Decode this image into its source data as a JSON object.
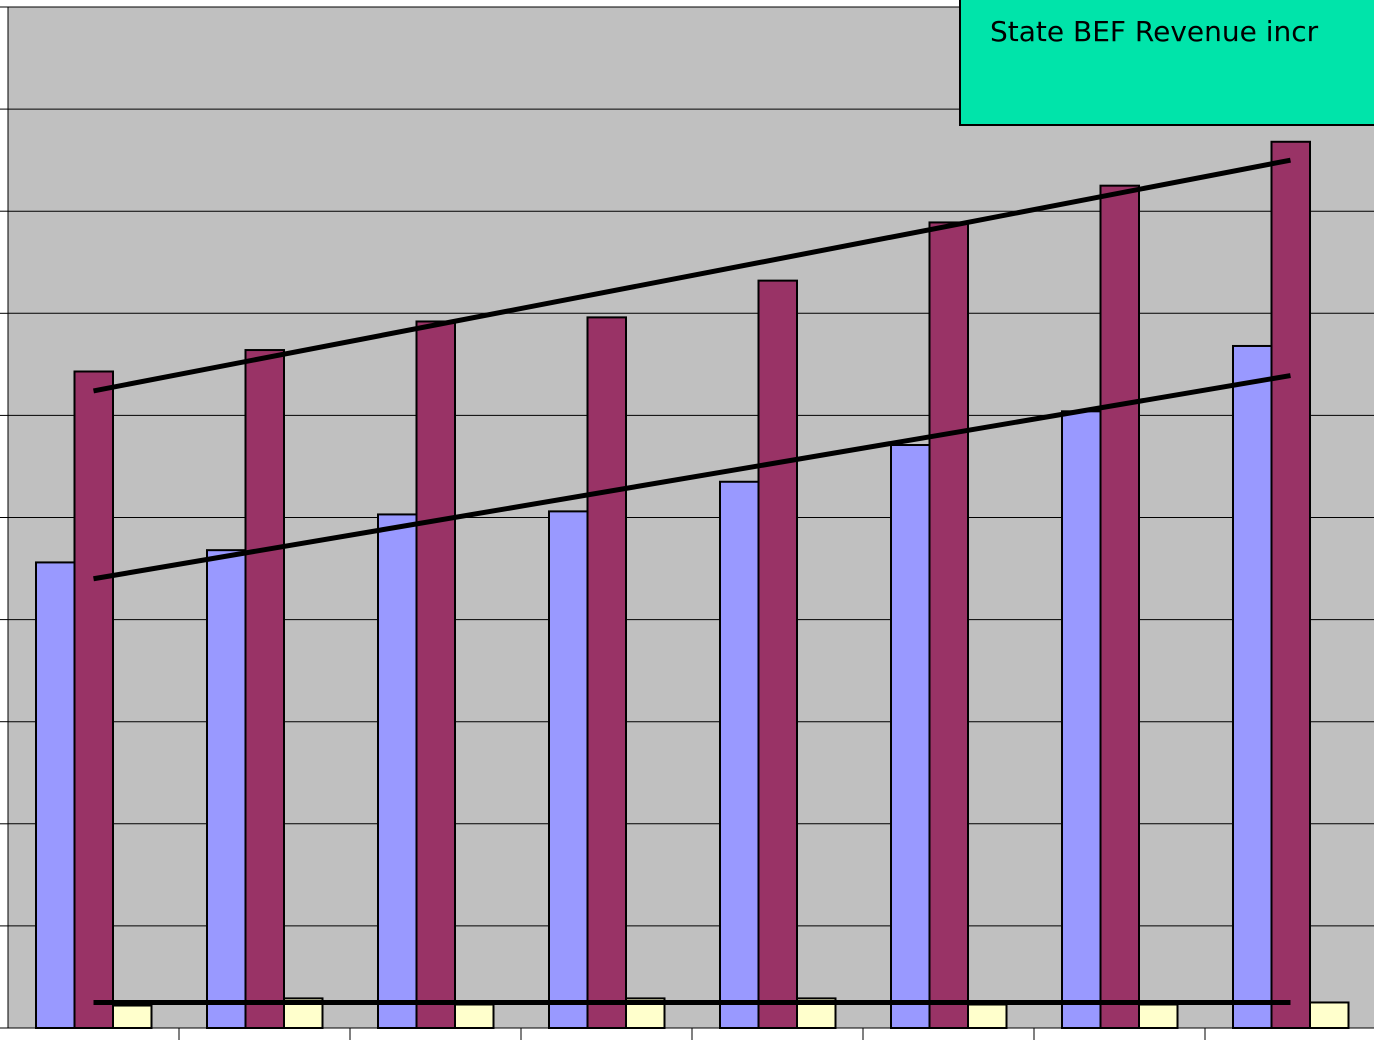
{
  "chart_data": {
    "type": "bar",
    "annotation": "State BEF Revenue incr",
    "categories": [
      null,
      null,
      null,
      null,
      null,
      null,
      null,
      null
    ],
    "series": [
      {
        "color": "#9999ff",
        "values": [
          4.56,
          4.68,
          5.03,
          5.06,
          5.35,
          5.71,
          6.04,
          6.68
        ],
        "trend": [
          4.4,
          6.39
        ]
      },
      {
        "color": "#993366",
        "values": [
          6.43,
          6.64,
          6.92,
          6.96,
          7.32,
          7.89,
          8.25,
          8.68
        ],
        "trend": [
          6.24,
          8.5
        ]
      },
      {
        "color": "#ffffcc",
        "values": [
          0.22,
          0.29,
          0.23,
          0.29,
          0.29,
          0.23,
          0.23,
          0.25
        ],
        "trend": [
          0.25,
          0.25
        ]
      }
    ],
    "ylim": [
      0,
      10
    ],
    "yticks": [
      0,
      1,
      2,
      3,
      4,
      5,
      6,
      7,
      8,
      9,
      10
    ],
    "grid": true
  }
}
